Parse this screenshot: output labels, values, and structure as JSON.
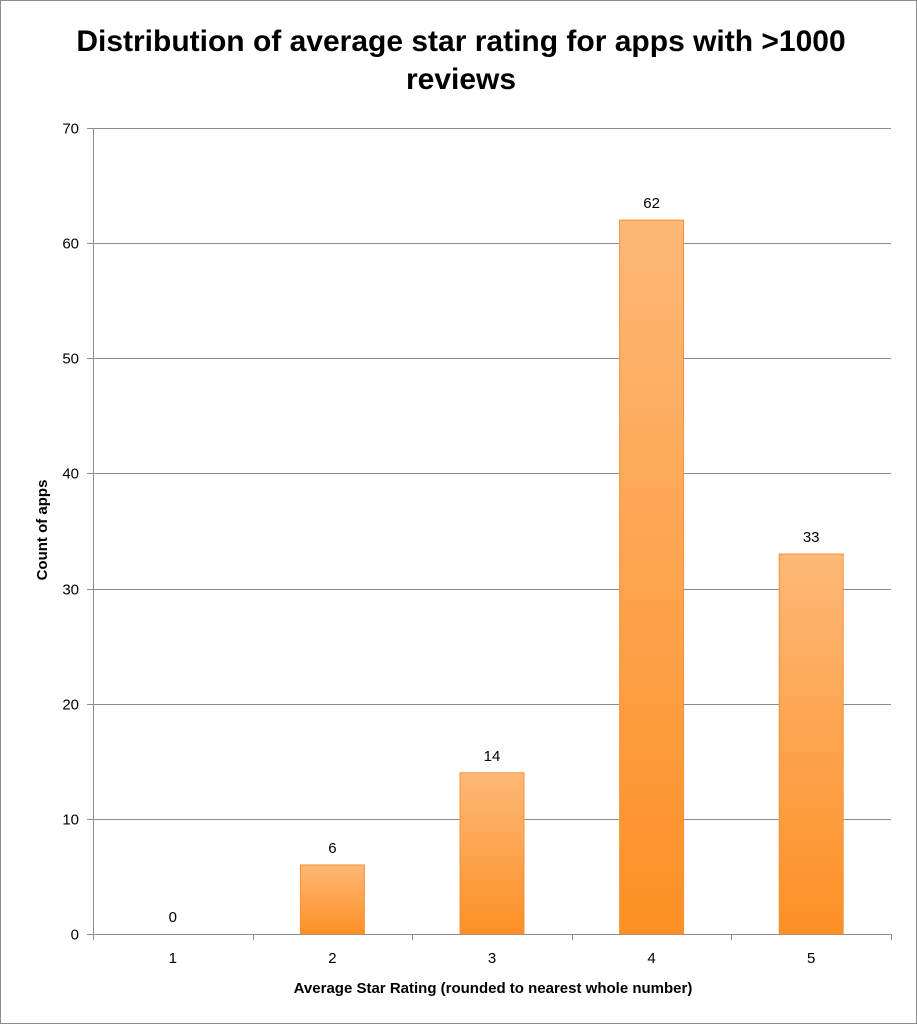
{
  "chart_data": {
    "type": "bar",
    "title": "Distribution of average star rating for apps with >1000 reviews",
    "categories": [
      "1",
      "2",
      "3",
      "4",
      "5"
    ],
    "values": [
      0,
      6,
      14,
      62,
      33
    ],
    "data_labels": [
      "0",
      "6",
      "14",
      "62",
      "33"
    ],
    "xlabel": "Average Star Rating (rounded to nearest whole number)",
    "ylabel": "Count of apps",
    "ylim": [
      0,
      70
    ],
    "yticks": [
      0,
      10,
      20,
      30,
      40,
      50,
      60,
      70
    ],
    "grid": true,
    "legend": "none",
    "colors": {
      "bar_top": "#fdb877",
      "bar_bottom": "#fd9025",
      "bar_edge": "#f4913a",
      "grid": "#8c8c8c"
    }
  }
}
